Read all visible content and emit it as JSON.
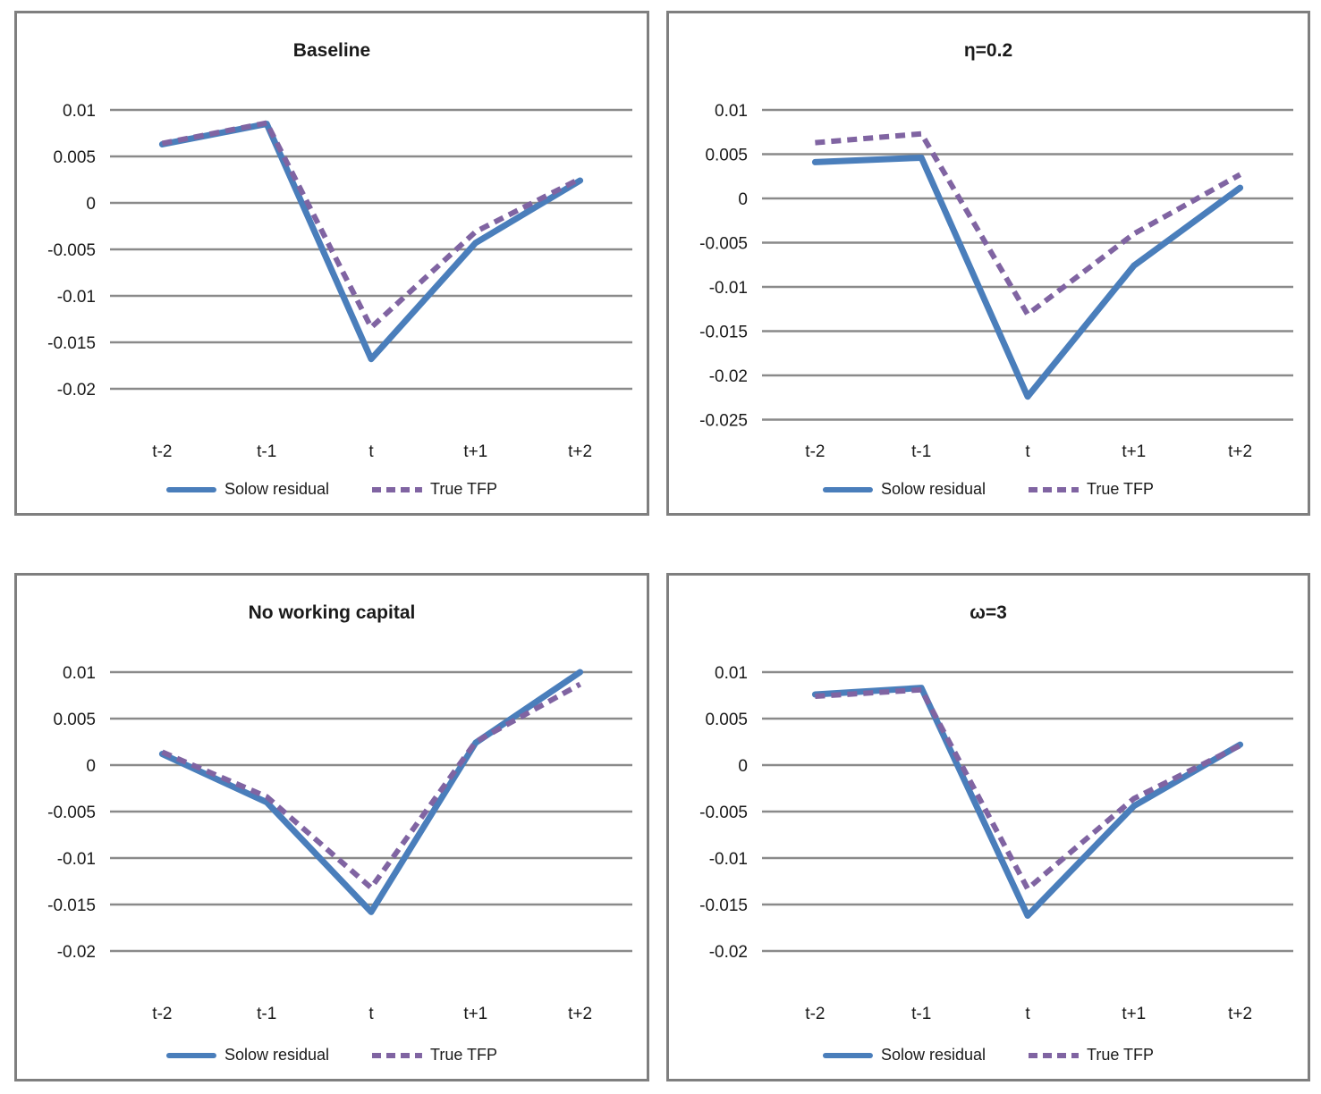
{
  "page": {
    "background": "#ffffff"
  },
  "colors": {
    "solow_blue": "#4a7ebb",
    "tfp_purple": "#8064a2",
    "gridline_gray": "#8a8a8a",
    "panel_border_gray": "#7f7f7f",
    "text_black": "#1a1a1a"
  },
  "chart_data": [
    {
      "type": "line",
      "title": "Baseline",
      "categories": [
        "t-2",
        "t-1",
        "t",
        "t+1",
        "t+2"
      ],
      "yticks": [
        0.01,
        0.005,
        0,
        -0.005,
        -0.01,
        -0.015,
        -0.02
      ],
      "ylim": [
        -0.02,
        0.01
      ],
      "grid": true,
      "legend_position": "bottom",
      "series": [
        {
          "name": "Solow residual",
          "style": "solid",
          "color": "#4a7ebb",
          "values": [
            0.0063,
            0.0085,
            -0.0168,
            -0.0043,
            0.0024
          ]
        },
        {
          "name": "True TFP",
          "style": "dashed",
          "color": "#8064a2",
          "values": [
            0.0064,
            0.0086,
            -0.0134,
            -0.0031,
            0.0026
          ]
        }
      ]
    },
    {
      "type": "line",
      "title": "η=0.2",
      "categories": [
        "t-2",
        "t-1",
        "t",
        "t+1",
        "t+2"
      ],
      "yticks": [
        0.01,
        0.005,
        0,
        -0.005,
        -0.01,
        -0.015,
        -0.02,
        -0.025
      ],
      "ylim": [
        -0.025,
        0.01
      ],
      "grid": true,
      "legend_position": "bottom",
      "series": [
        {
          "name": "Solow residual",
          "style": "solid",
          "color": "#4a7ebb",
          "values": [
            0.0041,
            0.0046,
            -0.0224,
            -0.0076,
            0.0012
          ]
        },
        {
          "name": "True TFP",
          "style": "dashed",
          "color": "#8064a2",
          "values": [
            0.0063,
            0.0073,
            -0.0131,
            -0.004,
            0.0027
          ]
        }
      ]
    },
    {
      "type": "line",
      "title": "No working capital",
      "categories": [
        "t-2",
        "t-1",
        "t",
        "t+1",
        "t+2"
      ],
      "yticks": [
        0.01,
        0.005,
        0,
        -0.005,
        -0.01,
        -0.015,
        -0.02
      ],
      "ylim": [
        -0.02,
        0.01
      ],
      "grid": true,
      "legend_position": "bottom",
      "series": [
        {
          "name": "Solow residual",
          "style": "solid",
          "color": "#4a7ebb",
          "values": [
            0.0012,
            -0.004,
            -0.0158,
            0.0024,
            0.01
          ]
        },
        {
          "name": "True TFP",
          "style": "dashed",
          "color": "#8064a2",
          "values": [
            0.0014,
            -0.0034,
            -0.0132,
            0.0025,
            0.0087
          ]
        }
      ]
    },
    {
      "type": "line",
      "title": "ω=3",
      "categories": [
        "t-2",
        "t-1",
        "t",
        "t+1",
        "t+2"
      ],
      "yticks": [
        0.01,
        0.005,
        0,
        -0.005,
        -0.01,
        -0.015,
        -0.02
      ],
      "ylim": [
        -0.02,
        0.01
      ],
      "grid": true,
      "legend_position": "bottom",
      "series": [
        {
          "name": "Solow residual",
          "style": "solid",
          "color": "#4a7ebb",
          "values": [
            0.0076,
            0.0083,
            -0.0162,
            -0.0044,
            0.0022
          ]
        },
        {
          "name": "True TFP",
          "style": "dashed",
          "color": "#8064a2",
          "values": [
            0.0074,
            0.0081,
            -0.0133,
            -0.0036,
            0.0021
          ]
        }
      ]
    }
  ]
}
